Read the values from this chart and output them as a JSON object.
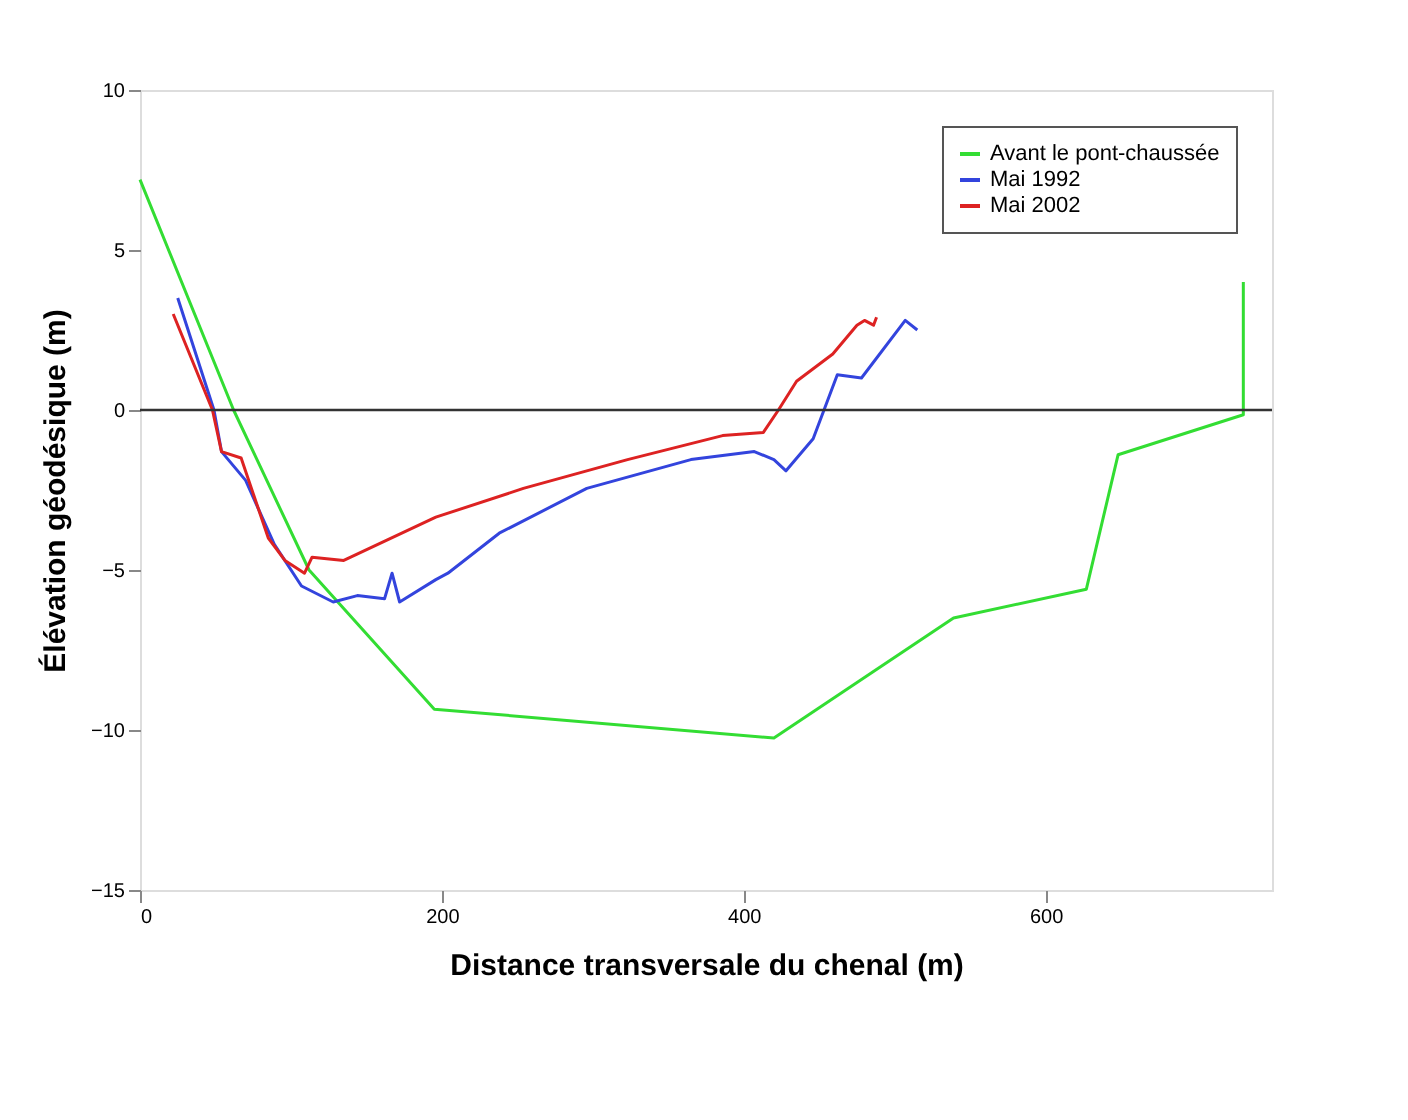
{
  "chart_data": {
    "type": "line",
    "xlabel": "Distance transversale du chenal (m)",
    "ylabel": "Élévation géodésique (m)",
    "xlim": [
      0,
      750
    ],
    "ylim": [
      -15,
      10
    ],
    "xticks": [
      0,
      200,
      400,
      600
    ],
    "yticks": [
      -15,
      -10,
      -5,
      0,
      5,
      10
    ],
    "grid": false,
    "legend": "top right",
    "marker": "none",
    "line_style": "solid",
    "ref_lines": [
      {
        "axis": "y",
        "value": 0,
        "color": "#333333"
      }
    ],
    "series": [
      {
        "name": "Avant le pont-chaussée",
        "color": "#33dd33",
        "x": [
          0,
          62,
          112,
          195,
          420,
          539,
          627,
          648,
          731,
          731
        ],
        "values": [
          7.2,
          0,
          -5,
          -9.35,
          -10.25,
          -6.5,
          -5.6,
          -1.4,
          -0.15,
          4
        ]
      },
      {
        "name": "Mai 1992",
        "color": "#3344dd",
        "x": [
          25,
          49,
          54,
          70,
          89,
          107,
          128,
          144,
          162,
          167,
          172,
          196,
          204,
          238,
          296,
          365,
          407,
          420,
          428,
          446,
          462,
          478,
          507,
          515
        ],
        "values": [
          3.5,
          0,
          -1.3,
          -2.2,
          -4.2,
          -5.5,
          -6.0,
          -5.8,
          -5.9,
          -5.1,
          -6.0,
          -5.3,
          -5.1,
          -3.85,
          -2.45,
          -1.55,
          -1.3,
          -1.55,
          -1.9,
          -0.9,
          1.1,
          1.0,
          2.8,
          2.5
        ]
      },
      {
        "name": "Mai 2002",
        "color": "#dd2222",
        "x": [
          22,
          48,
          54,
          67,
          85,
          96,
          109,
          114,
          135,
          196,
          254,
          323,
          386,
          413,
          423,
          435,
          459,
          475,
          480,
          486,
          488
        ],
        "values": [
          3.0,
          0,
          -1.3,
          -1.5,
          -4,
          -4.7,
          -5.1,
          -4.6,
          -4.7,
          -3.35,
          -2.45,
          -1.55,
          -0.8,
          -0.7,
          0,
          0.9,
          1.75,
          2.65,
          2.8,
          2.65,
          2.9
        ]
      }
    ]
  }
}
